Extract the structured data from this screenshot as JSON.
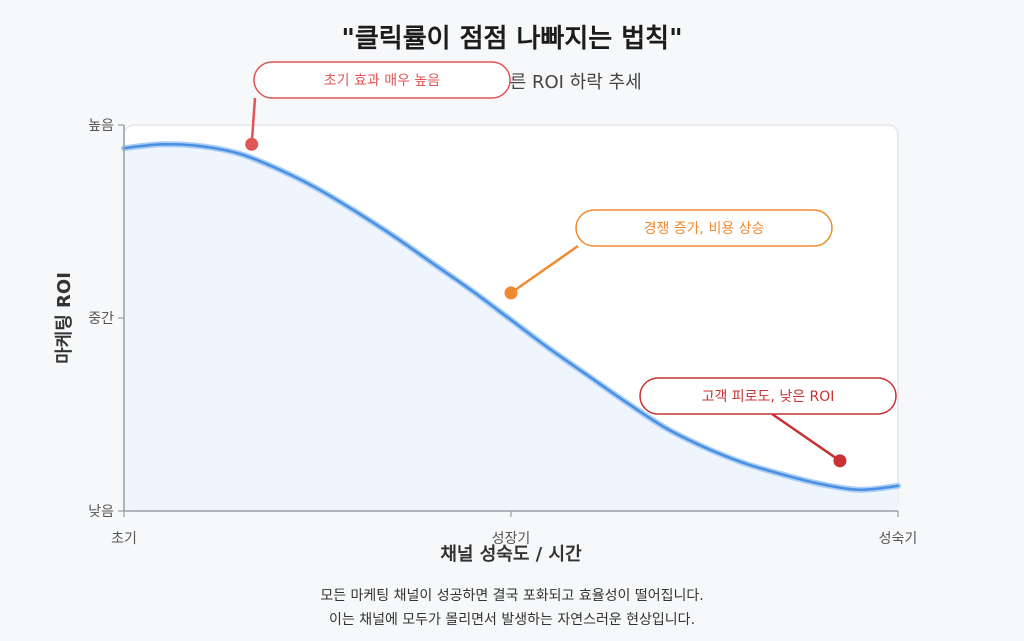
{
  "title": "\"클릭률이 점점 나빠지는 법칙\"",
  "subtitle": "채널 성숙도에 따른 ROI 하락 추세",
  "footer": {
    "line1": "모든 마케팅 채널이 성공하면 결국 포화되고 효율성이 떨어집니다.",
    "line2": "이는 채널에 모두가 몰리면서 발생하는 자연스러운 현상입니다."
  },
  "chart_data": {
    "type": "area",
    "xlabel": "채널 성숙도 / 시간",
    "ylabel": "마케팅 ROI",
    "x_ticks": [
      "초기",
      "성장기",
      "성숙기"
    ],
    "y_ticks": [
      "낮음",
      "중간",
      "높음"
    ],
    "xlim": [
      0,
      2
    ],
    "ylim": [
      0,
      2
    ],
    "grid": false,
    "series": [
      {
        "x": [
          0,
          0.1,
          0.2,
          0.3,
          0.4,
          0.5,
          0.6,
          0.7,
          0.8,
          0.9,
          1.0,
          1.1,
          1.2,
          1.3,
          1.4,
          1.5,
          1.6,
          1.7,
          1.8,
          1.9,
          2.0
        ],
        "values": [
          1.88,
          1.9,
          1.89,
          1.85,
          1.77,
          1.67,
          1.55,
          1.42,
          1.28,
          1.14,
          0.99,
          0.84,
          0.7,
          0.56,
          0.43,
          0.33,
          0.25,
          0.19,
          0.14,
          0.11,
          0.13
        ]
      }
    ],
    "colors": {
      "line": "#4a90e2",
      "fill": "#eef5fd",
      "annotation_red": "#e05555",
      "annotation_orange": "#f08a30",
      "annotation_darkred": "#c83232"
    },
    "annotations": [
      {
        "text": "초기 효과 매우 높음",
        "x": 0.33,
        "y": 1.9,
        "color": "#e05555"
      },
      {
        "text": "경쟁 증가, 비용 상승",
        "x": 1.0,
        "y": 1.13,
        "color": "#f08a30"
      },
      {
        "text": "고객 피로도, 낮은 ROI",
        "x": 1.85,
        "y": 0.26,
        "color": "#c83232"
      }
    ]
  }
}
